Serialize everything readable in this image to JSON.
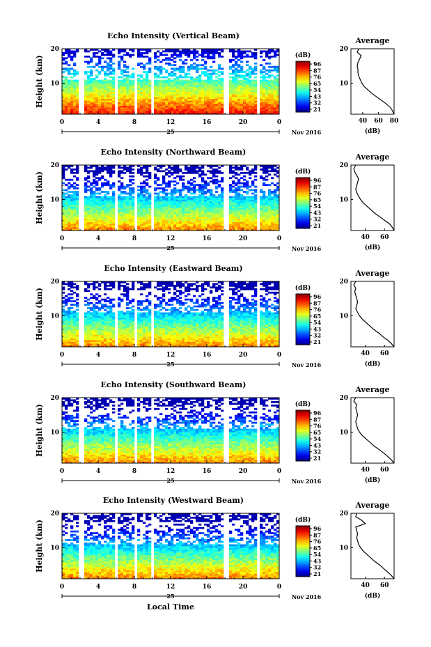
{
  "figure": {
    "date_label": "Nov 2016",
    "day_label": "25",
    "x_label": "Local Time",
    "y_label": "Height (km)",
    "colorbar_unit": "(dB)",
    "avg_title": "Average",
    "avg_xlabel": "(dB)"
  },
  "chart_data": [
    {
      "type": "heatmap",
      "title": "Echo Intensity (Vertical Beam)",
      "xlabel": "",
      "ylabel": "Height (km)",
      "xlim": [
        0,
        24
      ],
      "ylim": [
        1,
        20
      ],
      "x_ticks": [
        "0",
        "4",
        "8",
        "12",
        "16",
        "20",
        "0"
      ],
      "y_ticks": [
        "10",
        "20"
      ],
      "colorbar_ticks": [
        "96",
        "87",
        "76",
        "65",
        "54",
        "43",
        "32",
        "21"
      ],
      "gaps_hours": [
        [
          2.0,
          2.4
        ],
        [
          5.8,
          6.2
        ],
        [
          8.0,
          8.4
        ],
        [
          9.7,
          10.0
        ],
        [
          18.0,
          18.4
        ],
        [
          21.5,
          21.9
        ]
      ],
      "average_profile": {
        "xlabel": "(dB)",
        "x_ticks": [
          "40",
          "60",
          "80"
        ],
        "xlim": [
          25,
          80
        ],
        "y_ticks": [
          "10",
          "20"
        ],
        "heights": [
          1,
          2,
          3,
          4,
          5,
          6,
          7,
          8,
          9,
          10,
          11,
          12,
          13,
          14,
          15,
          16,
          17,
          18,
          19,
          20
        ],
        "values": [
          80,
          78,
          75,
          70,
          64,
          58,
          52,
          47,
          42,
          39,
          37,
          35,
          34,
          34,
          33,
          34,
          36,
          38,
          33,
          35
        ]
      }
    },
    {
      "type": "heatmap",
      "title": "Echo Intensity (Northward Beam)",
      "xlabel": "",
      "ylabel": "Height (km)",
      "xlim": [
        0,
        24
      ],
      "ylim": [
        1,
        20
      ],
      "x_ticks": [
        "0",
        "4",
        "8",
        "12",
        "16",
        "20",
        "0"
      ],
      "y_ticks": [
        "10",
        "20"
      ],
      "colorbar_ticks": [
        "96",
        "87",
        "76",
        "65",
        "54",
        "43",
        "32",
        "21"
      ],
      "gaps_hours": [
        [
          2.0,
          2.4
        ],
        [
          5.8,
          6.2
        ],
        [
          8.0,
          8.4
        ],
        [
          9.7,
          10.0
        ],
        [
          18.0,
          18.4
        ],
        [
          21.5,
          21.9
        ]
      ],
      "average_profile": {
        "xlabel": "(dB)",
        "x_ticks": [
          "40",
          "60"
        ],
        "xlim": [
          25,
          70
        ],
        "y_ticks": [
          "10",
          "20"
        ],
        "heights": [
          1,
          2,
          3,
          4,
          5,
          6,
          7,
          8,
          9,
          10,
          11,
          12,
          13,
          14,
          15,
          16,
          17,
          18,
          19,
          20
        ],
        "values": [
          70,
          68,
          65,
          60,
          55,
          50,
          46,
          42,
          38,
          35,
          33,
          31,
          30,
          31,
          32,
          33,
          31,
          29,
          28,
          30
        ]
      }
    },
    {
      "type": "heatmap",
      "title": "Echo Intensity (Eastward Beam)",
      "xlabel": "",
      "ylabel": "Height (km)",
      "xlim": [
        0,
        24
      ],
      "ylim": [
        1,
        20
      ],
      "x_ticks": [
        "0",
        "4",
        "8",
        "12",
        "16",
        "20",
        "0"
      ],
      "y_ticks": [
        "10",
        "20"
      ],
      "colorbar_ticks": [
        "96",
        "87",
        "76",
        "65",
        "54",
        "43",
        "32",
        "21"
      ],
      "gaps_hours": [
        [
          2.0,
          2.4
        ],
        [
          5.8,
          6.2
        ],
        [
          8.0,
          8.4
        ],
        [
          9.7,
          10.0
        ],
        [
          18.0,
          18.4
        ],
        [
          21.5,
          21.9
        ]
      ],
      "average_profile": {
        "xlabel": "(dB)",
        "x_ticks": [
          "40",
          "60"
        ],
        "xlim": [
          25,
          70
        ],
        "y_ticks": [
          "10",
          "20"
        ],
        "heights": [
          1,
          2,
          3,
          4,
          5,
          6,
          7,
          8,
          9,
          10,
          11,
          12,
          13,
          14,
          15,
          16,
          17,
          18,
          19,
          20
        ],
        "values": [
          70,
          67,
          63,
          58,
          54,
          49,
          45,
          41,
          37,
          34,
          32,
          30,
          31,
          32,
          31,
          30,
          29,
          30,
          28,
          30
        ]
      }
    },
    {
      "type": "heatmap",
      "title": "Echo Intensity (Southward Beam)",
      "xlabel": "",
      "ylabel": "Height (km)",
      "xlim": [
        0,
        24
      ],
      "ylim": [
        1,
        20
      ],
      "x_ticks": [
        "0",
        "4",
        "8",
        "12",
        "16",
        "20",
        "0"
      ],
      "y_ticks": [
        "10",
        "20"
      ],
      "colorbar_ticks": [
        "96",
        "87",
        "76",
        "65",
        "54",
        "43",
        "32",
        "21"
      ],
      "gaps_hours": [
        [
          2.0,
          2.4
        ],
        [
          5.8,
          6.2
        ],
        [
          8.0,
          8.4
        ],
        [
          9.7,
          10.0
        ],
        [
          18.0,
          18.4
        ],
        [
          21.5,
          21.9
        ]
      ],
      "average_profile": {
        "xlabel": "(dB)",
        "x_ticks": [
          "40",
          "60"
        ],
        "xlim": [
          25,
          70
        ],
        "y_ticks": [
          "10",
          "20"
        ],
        "heights": [
          1,
          2,
          3,
          4,
          5,
          6,
          7,
          8,
          9,
          10,
          11,
          12,
          13,
          14,
          15,
          16,
          17,
          18,
          19,
          20
        ],
        "values": [
          70,
          67,
          63,
          59,
          54,
          49,
          45,
          41,
          37,
          34,
          32,
          31,
          30,
          31,
          32,
          31,
          30,
          31,
          28,
          30
        ]
      }
    },
    {
      "type": "heatmap",
      "title": "Echo Intensity (Westward Beam)",
      "xlabel": "Local Time",
      "ylabel": "Height (km)",
      "xlim": [
        0,
        24
      ],
      "ylim": [
        1,
        20
      ],
      "x_ticks": [
        "0",
        "4",
        "8",
        "12",
        "16",
        "20",
        "0"
      ],
      "y_ticks": [
        "10",
        "20"
      ],
      "colorbar_ticks": [
        "96",
        "87",
        "76",
        "65",
        "54",
        "43",
        "32",
        "21"
      ],
      "gaps_hours": [
        [
          2.0,
          2.4
        ],
        [
          5.8,
          6.2
        ],
        [
          8.0,
          8.4
        ],
        [
          9.7,
          10.0
        ],
        [
          18.0,
          18.4
        ],
        [
          21.5,
          21.9
        ]
      ],
      "average_profile": {
        "xlabel": "(dB)",
        "x_ticks": [
          "40",
          "60"
        ],
        "xlim": [
          25,
          70
        ],
        "y_ticks": [
          "10",
          "20"
        ],
        "heights": [
          1,
          2,
          3,
          4,
          5,
          6,
          7,
          8,
          9,
          10,
          11,
          12,
          13,
          14,
          15,
          16,
          17,
          18,
          19,
          20
        ],
        "values": [
          70,
          67,
          63,
          59,
          55,
          50,
          46,
          42,
          38,
          35,
          33,
          32,
          31,
          32,
          31,
          30,
          40,
          36,
          30,
          31
        ]
      }
    }
  ]
}
